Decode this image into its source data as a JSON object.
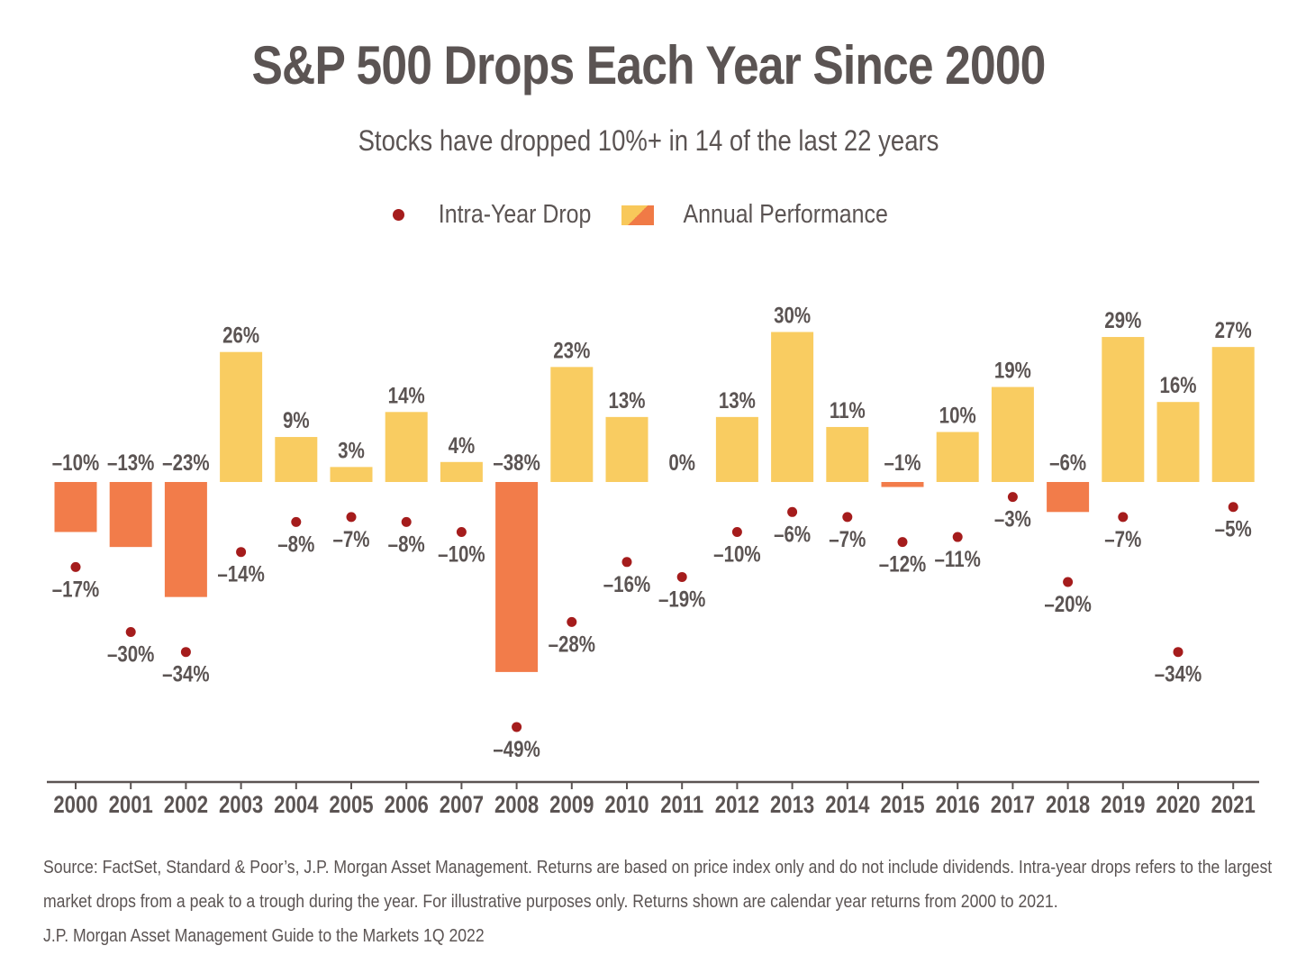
{
  "title": "S&P 500 Drops Each Year Since 2000",
  "subtitle": "Stocks have dropped 10%+ in 14 of the last 22 years",
  "legend": {
    "drop_label": "Intra-Year Drop",
    "performance_label": "Annual Performance"
  },
  "colors": {
    "positive_bar": "#f9cc61",
    "negative_bar": "#f27c4a",
    "drop_dot": "#a51c1c",
    "text": "#5b5453",
    "axis": "#5b5453"
  },
  "chart_data": {
    "type": "bar",
    "categories": [
      "2000",
      "2001",
      "2002",
      "2003",
      "2004",
      "2005",
      "2006",
      "2007",
      "2008",
      "2009",
      "2010",
      "2011",
      "2012",
      "2013",
      "2014",
      "2015",
      "2016",
      "2017",
      "2018",
      "2019",
      "2020",
      "2021"
    ],
    "series": [
      {
        "name": "Annual Performance",
        "type": "bar",
        "values": [
          -10,
          -13,
          -23,
          26,
          9,
          3,
          14,
          4,
          -38,
          23,
          13,
          0,
          13,
          30,
          11,
          -1,
          10,
          19,
          -6,
          29,
          16,
          27
        ]
      },
      {
        "name": "Intra-Year Drop",
        "type": "scatter",
        "values": [
          -17,
          -30,
          -34,
          -14,
          -8,
          -7,
          -8,
          -10,
          -49,
          -28,
          -16,
          -19,
          -10,
          -6,
          -7,
          -12,
          -11,
          -3,
          -20,
          -7,
          -34,
          -5
        ]
      }
    ],
    "value_suffix": "%",
    "ylim": [
      -60,
      30
    ],
    "grid": false,
    "legend_position": "top-center"
  },
  "source": {
    "line1": "Source: FactSet, Standard & Poor’s, J.P. Morgan Asset Management. Returns are based on price index only and do not include dividends. Intra-year drops refers to the largest",
    "line2": "market drops from a peak to a trough during the year. For illustrative purposes only. Returns shown are calendar year returns from 2000 to 2021.",
    "line3": "J.P. Morgan Asset Management Guide to the Markets 1Q 2022"
  }
}
